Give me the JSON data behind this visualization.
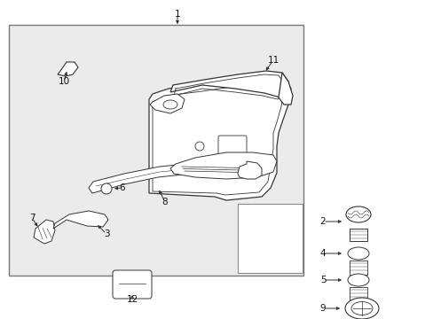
{
  "bg_color": "#ffffff",
  "box_bg": "#e8e8e8",
  "line_color": "#333333",
  "fig_w": 4.89,
  "fig_h": 3.6,
  "dpi": 100
}
